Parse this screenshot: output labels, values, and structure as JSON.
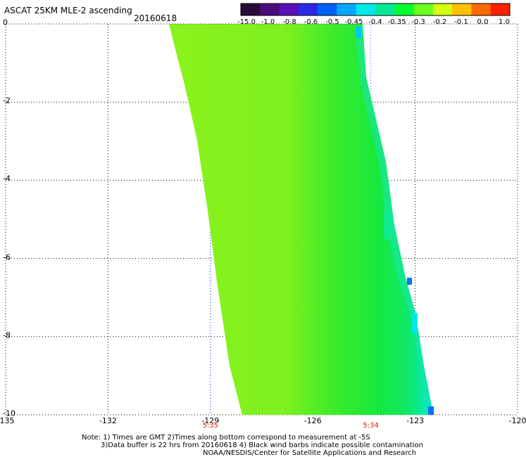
{
  "header": {
    "title": "ASCAT 25KM MLE-2 ascending",
    "date": "20160618"
  },
  "colorbar": {
    "labels": [
      "-15.0",
      "-1.0",
      "-0.8",
      "-0.6",
      "-0.5",
      "-0.45",
      "-0.4",
      "-0.35",
      "-0.3",
      "-0.2",
      "-0.1",
      "0.0",
      "1.0"
    ],
    "colors": [
      "#2a0a3a",
      "#4a0c7a",
      "#5a10b8",
      "#2a28e8",
      "#0060ff",
      "#00a8ff",
      "#00e8e8",
      "#00e898",
      "#00ff30",
      "#6aff1e",
      "#d4ff10",
      "#ffc000",
      "#ff6a00",
      "#ff2000"
    ]
  },
  "axes": {
    "x_ticks": [
      "-135",
      "-132",
      "-129",
      "-126",
      "-123",
      "-120"
    ],
    "x_range": [
      -135,
      -120
    ],
    "y_ticks": [
      "0",
      "-2",
      "-4",
      "-6",
      "-8",
      "-10"
    ],
    "y_range": [
      0,
      -10
    ]
  },
  "times": [
    {
      "label": "5:35",
      "lon": -129
    },
    {
      "label": "5:34",
      "lon": -124.3
    }
  ],
  "notes": {
    "line1": "Note: 1) Times are GMT 2)Times along bottom correspond to measurement at -5S",
    "line2": "3)Data buffer is 22 hrs from 20160618 4) Black wind barbs indicate possible contamination",
    "line3": "NOAA/NESDIS/Center for Satellite Applications and Research"
  }
}
